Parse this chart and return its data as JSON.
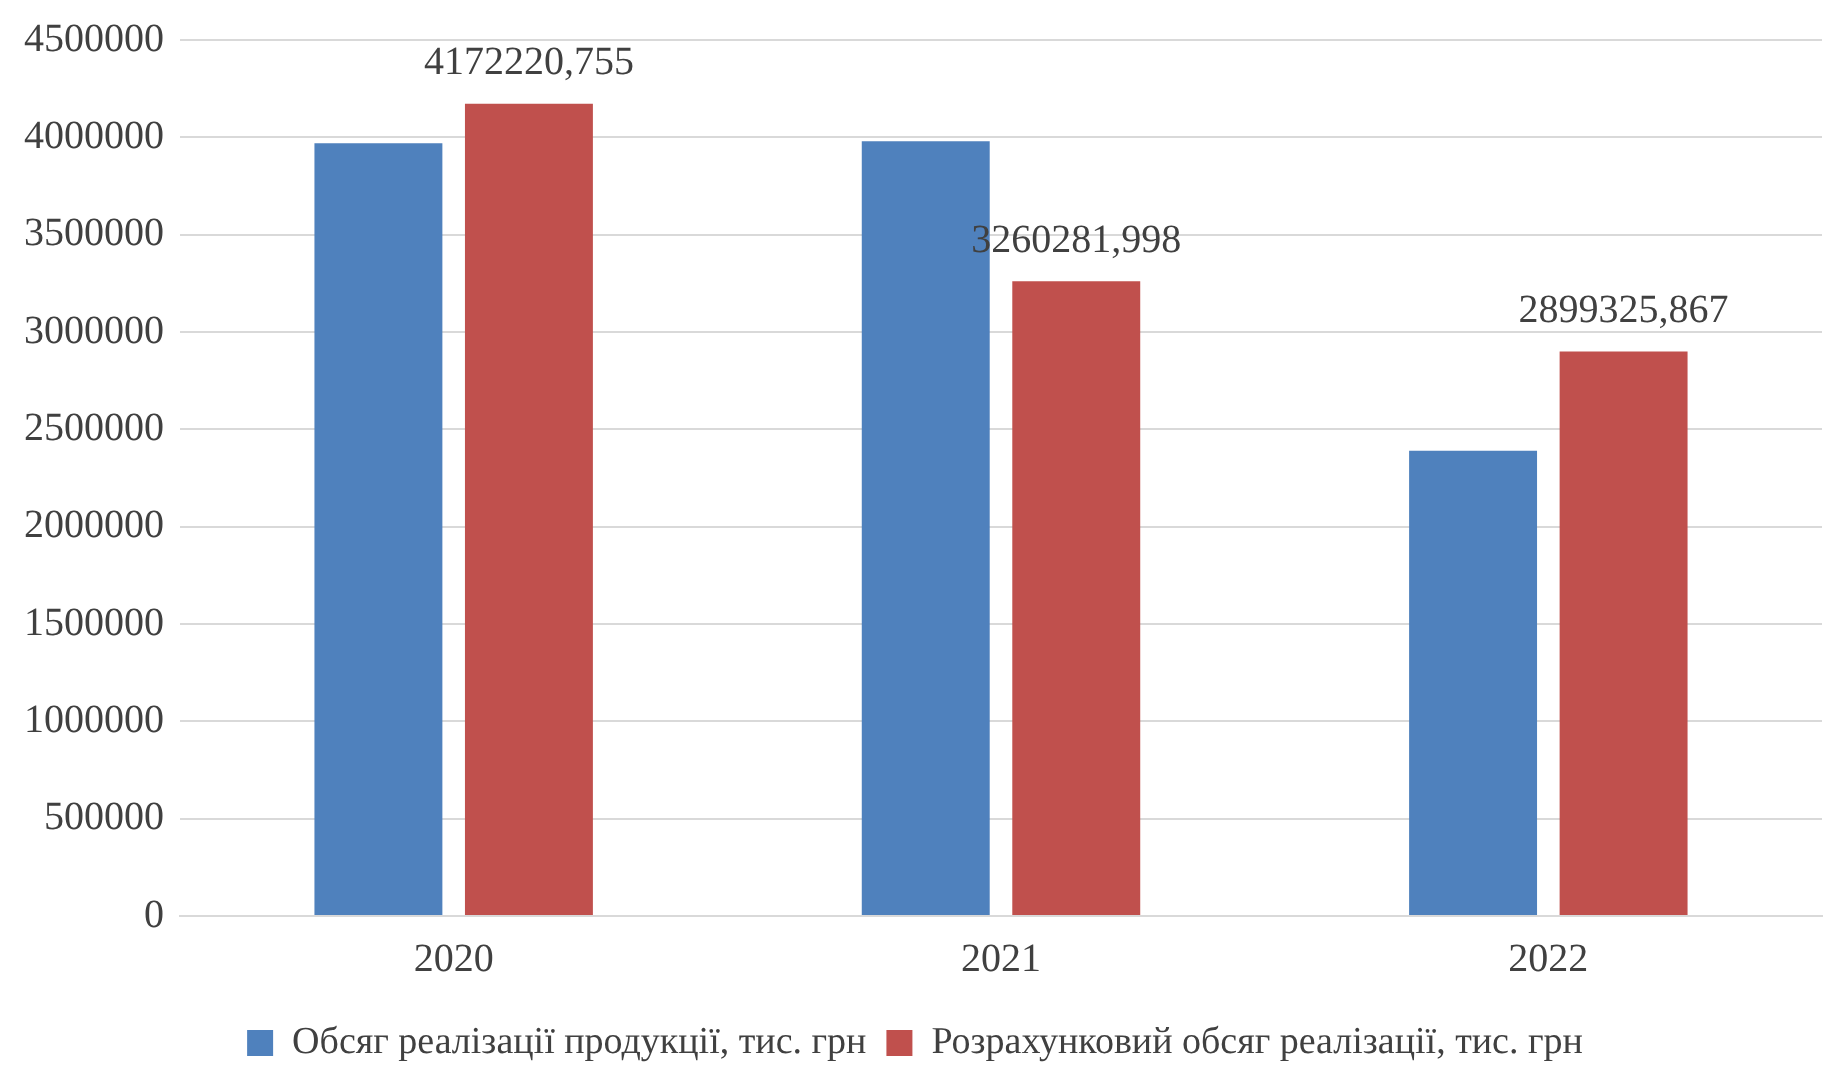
{
  "chart_data": {
    "type": "bar",
    "categories": [
      "2020",
      "2021",
      "2022"
    ],
    "series": [
      {
        "name": "Обсяг реалізації продукції, тис. грн",
        "color": "#4f81bd",
        "values": [
          3970000,
          3980000,
          2390000
        ]
      },
      {
        "name": "Розрахунковий обсяг реалізації, тис. грн",
        "color": "#c0504d",
        "values": [
          4172220.755,
          3260281.998,
          2899325.867
        ],
        "value_labels": [
          "4172220,755",
          "3260281,998",
          "2899325,867"
        ]
      }
    ],
    "ylim": [
      0,
      4500000
    ],
    "yticks": [
      0,
      500000,
      1000000,
      1500000,
      2000000,
      2500000,
      3000000,
      3500000,
      4000000,
      4500000
    ],
    "grid": "y",
    "legend": "bottom"
  }
}
